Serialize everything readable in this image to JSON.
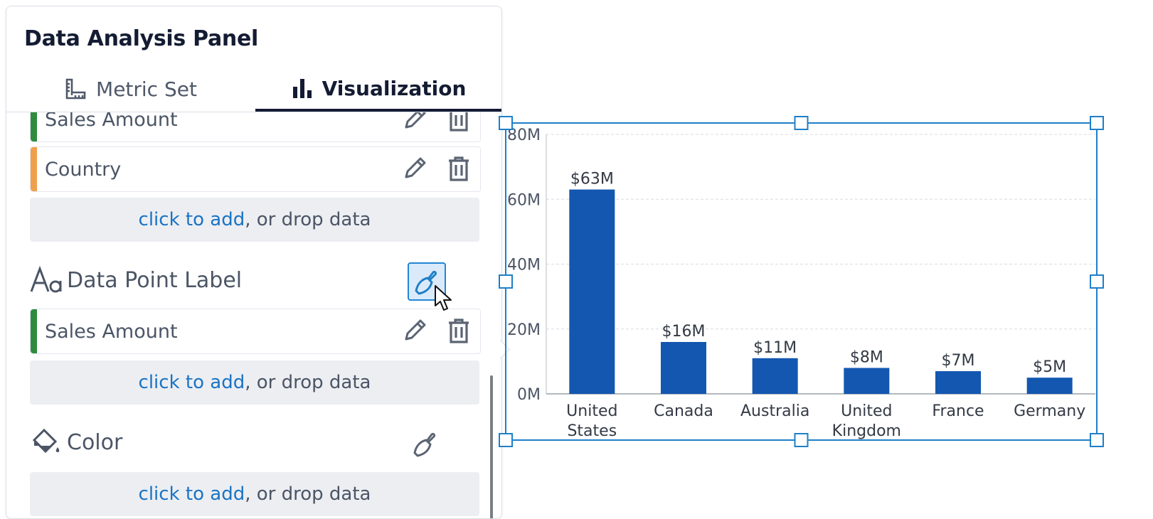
{
  "panel": {
    "title": "Data Analysis Panel",
    "tabs": [
      {
        "label": "Metric Set",
        "icon": "ruler-icon",
        "active": false
      },
      {
        "label": "Visualization",
        "icon": "bar-chart-icon",
        "active": true
      }
    ]
  },
  "sections": {
    "top_fields": [
      {
        "label": "Sales Amount",
        "color": "#2e8b3e"
      },
      {
        "label": "Country",
        "color": "#f0a04b"
      }
    ],
    "dropzone": {
      "link": "click to add",
      "rest": ", or drop data"
    },
    "data_point_label": {
      "title": "Data Point Label",
      "fields": [
        {
          "label": "Sales Amount",
          "color": "#2e8b3e"
        }
      ]
    },
    "color": {
      "title": "Color"
    }
  },
  "colors": {
    "accent": "#1a73c4",
    "bar": "#1357b0",
    "selection": "#1f7fc8"
  },
  "chart_data": {
    "type": "bar",
    "categories": [
      "United States",
      "Canada",
      "Australia",
      "United Kingdom",
      "France",
      "Germany"
    ],
    "category_lines": [
      [
        "United",
        "States"
      ],
      [
        "Canada"
      ],
      [
        "Australia"
      ],
      [
        "United",
        "Kingdom"
      ],
      [
        "France"
      ],
      [
        "Germany"
      ]
    ],
    "values": [
      63,
      16,
      11,
      8,
      7,
      5
    ],
    "data_labels": [
      "$63M",
      "$16M",
      "$11M",
      "$8M",
      "$7M",
      "$5M"
    ],
    "y_ticks": [
      "0M",
      "20M",
      "40M",
      "60M",
      "80M"
    ],
    "y_tick_values": [
      0,
      20,
      40,
      60,
      80
    ],
    "ylim": [
      0,
      80
    ],
    "grid": true,
    "xlabel": "",
    "ylabel": ""
  }
}
